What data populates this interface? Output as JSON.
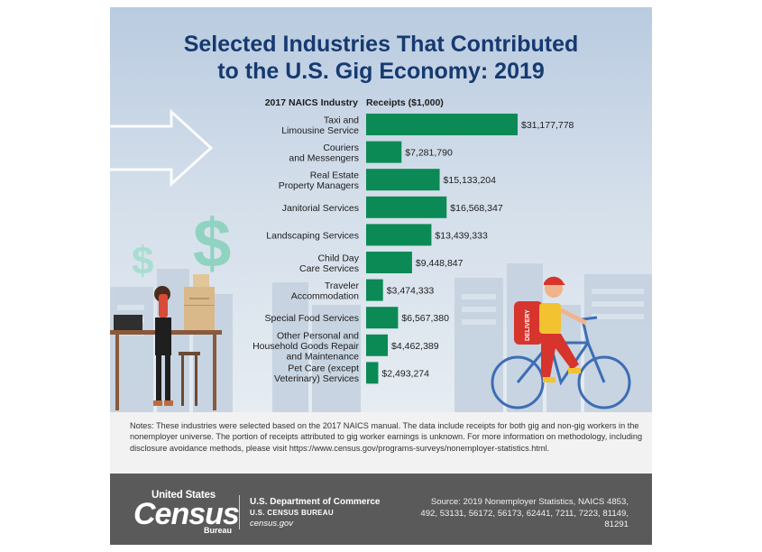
{
  "title_line1": "Selected Industries That Contributed",
  "title_line2": "to the U.S. Gig Economy: 2019",
  "notes": "Notes: These industries were selected based on the 2017 NAICS manual. The data include receipts for both gig and non-gig workers in the nonemployer universe. The portion of receipts attributed to gig worker earnings is unknown. For more information on methodology, including disclosure avoidance methods, please visit https://www.census.gov/programs-surveys/nonemployer-statistics.html.",
  "footer": {
    "logo_line1": "United States",
    "logo_line2": "Census",
    "logo_line3": "Bureau",
    "dept": "U.S. Department of Commerce",
    "bureau": "U.S. CENSUS BUREAU",
    "website": "census.gov",
    "source": "Source: 2019 Nonemployer Statistics, NAICS 4853, 492, 53131, 56172, 56173, 62441, 7211, 7223, 81149, 81291"
  },
  "illustration": {
    "bag_label": "DELIVERY"
  },
  "colors": {
    "bar": "#0b8a55",
    "title": "#163a70",
    "dollar": "#8fd3c0"
  },
  "chart_data": {
    "type": "bar",
    "orientation": "horizontal",
    "header_category": "2017 NAICS Industry",
    "header_value": "Receipts ($1,000)",
    "categories": [
      [
        "Taxi and",
        "Limousine Service"
      ],
      [
        "Couriers",
        "and Messengers"
      ],
      [
        "Real Estate",
        "Property Managers"
      ],
      [
        "Janitorial Services"
      ],
      [
        "Landscaping Services"
      ],
      [
        "Child Day",
        "Care Services"
      ],
      [
        "Traveler",
        "Accommodation"
      ],
      [
        "Special Food Services"
      ],
      [
        "Other Personal and",
        "Household Goods Repair",
        "and Maintenance"
      ],
      [
        "Pet Care (except",
        "Veterinary) Services"
      ]
    ],
    "values": [
      31177778,
      7281790,
      15133204,
      16568347,
      13439333,
      9448847,
      3474333,
      6567380,
      4462389,
      2493274
    ],
    "value_labels": [
      "$31,177,778",
      "$7,281,790",
      "$15,133,204",
      "$16,568,347",
      "$13,439,333",
      "$9,448,847",
      "$3,474,333",
      "$6,567,380",
      "$4,462,389",
      "$2,493,274"
    ],
    "unit": "$1,000"
  }
}
